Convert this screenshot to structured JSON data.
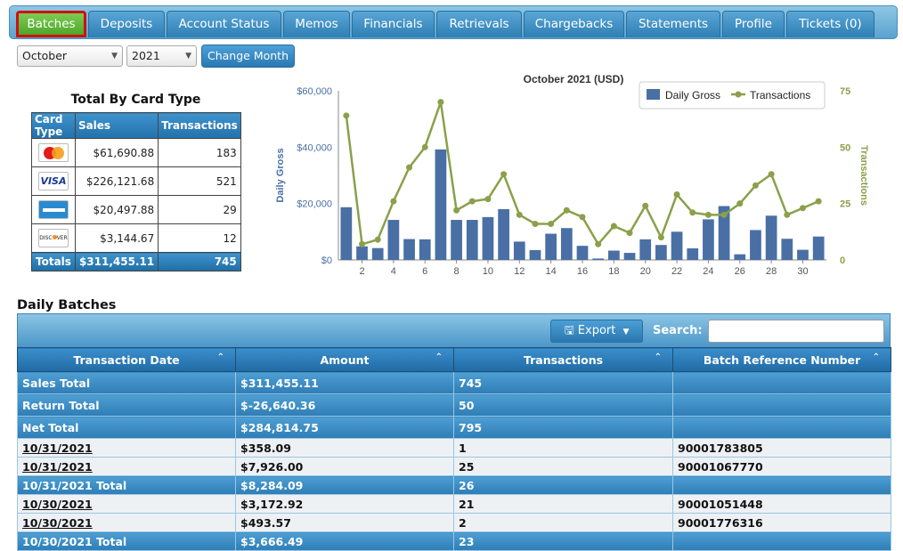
{
  "tabs": [
    {
      "label": "Batches",
      "active": true
    },
    {
      "label": "Deposits"
    },
    {
      "label": "Account Status"
    },
    {
      "label": "Memos"
    },
    {
      "label": "Financials"
    },
    {
      "label": "Retrievals"
    },
    {
      "label": "Chargebacks"
    },
    {
      "label": "Statements"
    },
    {
      "label": "Profile"
    },
    {
      "label": "Tickets (0)"
    }
  ],
  "controls": {
    "month_selected": "October",
    "year_selected": "2021",
    "change_month_label": "Change Month"
  },
  "card_type": {
    "title": "Total By Card Type",
    "headers": [
      "Card Type",
      "Sales",
      "Transactions"
    ],
    "rows": [
      {
        "card": "mastercard-icon",
        "sales": "$61,690.88",
        "transactions": "183"
      },
      {
        "card": "visa-icon",
        "sales": "$226,121.68",
        "transactions": "521"
      },
      {
        "card": "amex-icon",
        "sales": "$20,497.88",
        "transactions": "29"
      },
      {
        "card": "discover-icon",
        "sales": "$3,144.67",
        "transactions": "12"
      }
    ],
    "totals": {
      "label": "Totals",
      "sales": "$311,455.11",
      "transactions": "745"
    }
  },
  "chart_data": {
    "type": "bar",
    "title": "October 2021 (USD)",
    "ylabel": "Daily Gross",
    "y2label": "Transactions",
    "x": [
      1,
      2,
      3,
      4,
      5,
      6,
      7,
      8,
      9,
      10,
      11,
      12,
      13,
      14,
      15,
      16,
      17,
      18,
      19,
      20,
      21,
      22,
      23,
      24,
      25,
      26,
      27,
      28,
      29,
      30,
      31
    ],
    "xticks": [
      2,
      4,
      6,
      8,
      10,
      12,
      14,
      16,
      18,
      20,
      22,
      24,
      26,
      28,
      30
    ],
    "ylim": [
      0,
      60000
    ],
    "yticks": [
      "$0",
      "$20,000",
      "$40,000",
      "$60,000"
    ],
    "y2lim": [
      0,
      75
    ],
    "y2ticks": [
      "0",
      "25",
      "50",
      "75"
    ],
    "legend_position": "top-right",
    "series": [
      {
        "name": "Daily Gross",
        "type": "bar",
        "color": "#4a6fa5",
        "values": [
          18700,
          4800,
          4200,
          14200,
          7400,
          7300,
          39200,
          14200,
          14200,
          15200,
          18000,
          6500,
          3500,
          9300,
          11300,
          5000,
          500,
          3300,
          2500,
          7300,
          5300,
          10000,
          4100,
          14400,
          19100,
          2000,
          10600,
          15700,
          7500,
          3600,
          8300
        ]
      },
      {
        "name": "Transactions",
        "type": "line",
        "color": "#8aa04a",
        "values": [
          64,
          7,
          9,
          26,
          41,
          50,
          70,
          22,
          26,
          27,
          38,
          20,
          16,
          16,
          22,
          19,
          7,
          15,
          12,
          24,
          10,
          29,
          21,
          20,
          20,
          25,
          33,
          38,
          20,
          23,
          26
        ]
      }
    ]
  },
  "daily_batches": {
    "title": "Daily Batches",
    "export_label": "Export",
    "search_label": "Search:",
    "columns": [
      "Transaction Date",
      "Amount",
      "Transactions",
      "Batch Reference Number"
    ],
    "summary_rows": [
      [
        "Sales Total",
        "$311,455.11",
        "745",
        ""
      ],
      [
        "Return Total",
        "$-26,640.36",
        "50",
        ""
      ],
      [
        "Net Total",
        "$284,814.75",
        "795",
        ""
      ]
    ],
    "rows": [
      {
        "kind": "data",
        "cells": [
          "10/31/2021",
          "$358.09",
          "1",
          "90001783805"
        ]
      },
      {
        "kind": "data",
        "cells": [
          "10/31/2021",
          "$7,926.00",
          "25",
          "90001067770"
        ]
      },
      {
        "kind": "total",
        "cells": [
          "10/31/2021 Total",
          "$8,284.09",
          "26",
          ""
        ]
      },
      {
        "kind": "data",
        "cells": [
          "10/30/2021",
          "$3,172.92",
          "21",
          "90001051448"
        ]
      },
      {
        "kind": "data",
        "cells": [
          "10/30/2021",
          "$493.57",
          "2",
          "90001776316"
        ]
      },
      {
        "kind": "total",
        "cells": [
          "10/30/2021 Total",
          "$3,666.49",
          "23",
          ""
        ]
      }
    ]
  }
}
